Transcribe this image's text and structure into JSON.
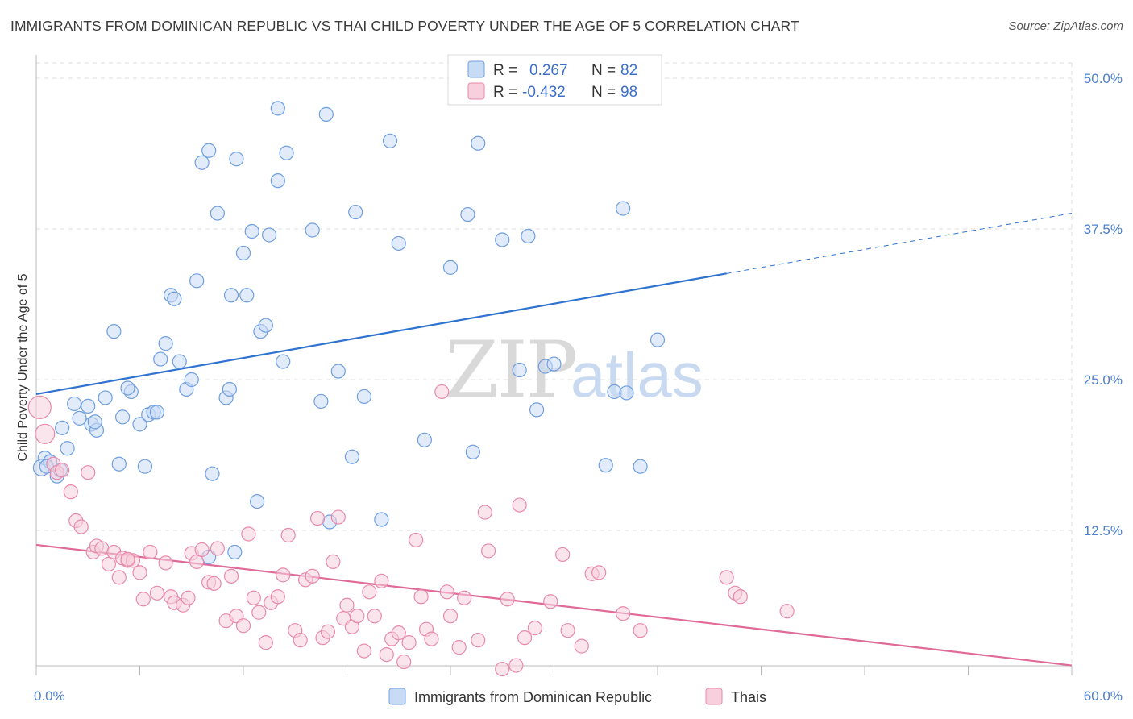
{
  "title": "IMMIGRANTS FROM DOMINICAN REPUBLIC VS THAI CHILD POVERTY UNDER THE AGE OF 5 CORRELATION CHART",
  "source": "Source: ZipAtlas.com",
  "watermark": {
    "zip": "ZIP",
    "atlas": "atlas"
  },
  "colors": {
    "blue": "#6f9fe0",
    "blue_fill": "#c8dbf5",
    "blue_line": "#2f72d0",
    "pink": "#e88aab",
    "pink_fill": "#f8cfdd",
    "pink_line": "#e06a98",
    "grid": "#dcdcdc",
    "tick_text": "#4a7fd0"
  },
  "legend": {
    "rows": [
      {
        "r_label": "R =",
        "r_value": "0.267",
        "n_label": "N =",
        "n_value": "82"
      },
      {
        "r_label": "R =",
        "r_value": "-0.432",
        "n_label": "N =",
        "n_value": "98"
      }
    ]
  },
  "bottom_legend": [
    "Immigrants from Dominican Republic",
    "Thais"
  ],
  "chart_data": {
    "type": "scatter",
    "xlabel": "",
    "ylabel": "Child Poverty Under the Age of 5",
    "xlim": [
      0,
      60
    ],
    "ylim": [
      0,
      50
    ],
    "x_tick_labels": [
      "0.0%",
      "60.0%"
    ],
    "y_ticks": [
      12.5,
      25.0,
      37.5,
      50.0
    ],
    "y_tick_labels": [
      "12.5%",
      "25.0%",
      "37.5%",
      "50.0%"
    ],
    "grid": true,
    "legend_position": "top-center",
    "series": [
      {
        "name": "Immigrants from Dominican Republic",
        "color": "blue",
        "trend": {
          "x0": 0,
          "y0": 23.8,
          "x1": 40,
          "y1": 33.8,
          "dash_to_x": 60,
          "dash_to_y": 38.8
        },
        "points": [
          [
            0.3,
            17.7
          ],
          [
            0.5,
            18.5
          ],
          [
            0.8,
            18.2
          ],
          [
            1.2,
            17.0
          ],
          [
            1.4,
            17.5
          ],
          [
            1.8,
            19.3
          ],
          [
            1.5,
            21.0
          ],
          [
            2.2,
            23.0
          ],
          [
            2.5,
            21.8
          ],
          [
            3.0,
            22.8
          ],
          [
            3.2,
            21.3
          ],
          [
            3.5,
            20.8
          ],
          [
            3.4,
            21.5
          ],
          [
            4.0,
            23.5
          ],
          [
            4.5,
            29.0
          ],
          [
            4.8,
            18.0
          ],
          [
            5.0,
            21.9
          ],
          [
            5.5,
            24.0
          ],
          [
            5.3,
            24.3
          ],
          [
            6.0,
            21.3
          ],
          [
            6.3,
            17.8
          ],
          [
            6.5,
            22.1
          ],
          [
            6.8,
            22.3
          ],
          [
            7.0,
            22.3
          ],
          [
            7.2,
            26.7
          ],
          [
            7.5,
            28.0
          ],
          [
            7.8,
            32.0
          ],
          [
            8.0,
            31.7
          ],
          [
            8.3,
            26.5
          ],
          [
            8.7,
            24.2
          ],
          [
            9.0,
            25.0
          ],
          [
            9.3,
            33.2
          ],
          [
            9.6,
            43.0
          ],
          [
            10.0,
            10.3
          ],
          [
            10.0,
            44.0
          ],
          [
            10.2,
            17.2
          ],
          [
            10.5,
            38.8
          ],
          [
            11.0,
            23.5
          ],
          [
            11.2,
            24.2
          ],
          [
            11.3,
            32.0
          ],
          [
            11.5,
            10.7
          ],
          [
            11.6,
            43.3
          ],
          [
            12.0,
            35.5
          ],
          [
            12.2,
            32.0
          ],
          [
            12.5,
            37.3
          ],
          [
            12.8,
            14.9
          ],
          [
            13.0,
            29.0
          ],
          [
            13.3,
            29.5
          ],
          [
            13.5,
            37.0
          ],
          [
            14.0,
            41.5
          ],
          [
            14.3,
            26.5
          ],
          [
            14.5,
            43.8
          ],
          [
            14.0,
            47.5
          ],
          [
            16.0,
            37.4
          ],
          [
            16.5,
            23.2
          ],
          [
            16.8,
            47.0
          ],
          [
            17.0,
            13.2
          ],
          [
            17.5,
            25.7
          ],
          [
            18.5,
            38.9
          ],
          [
            18.3,
            18.6
          ],
          [
            19.0,
            23.6
          ],
          [
            20.0,
            13.4
          ],
          [
            20.5,
            44.8
          ],
          [
            21.0,
            36.3
          ],
          [
            22.5,
            20.0
          ],
          [
            24.0,
            34.3
          ],
          [
            25.0,
            38.7
          ],
          [
            25.3,
            19.0
          ],
          [
            25.6,
            44.6
          ],
          [
            27.0,
            36.6
          ],
          [
            28.0,
            25.8
          ],
          [
            28.5,
            36.9
          ],
          [
            29.0,
            22.5
          ],
          [
            29.5,
            26.1
          ],
          [
            30.0,
            26.3
          ],
          [
            33.0,
            17.9
          ],
          [
            33.5,
            24.0
          ],
          [
            34.0,
            39.2
          ],
          [
            35.0,
            17.8
          ],
          [
            36.0,
            28.3
          ],
          [
            34.2,
            23.9
          ],
          [
            0.6,
            17.8
          ]
        ]
      },
      {
        "name": "Thais",
        "color": "pink",
        "trend": {
          "x0": 0,
          "y0": 11.3,
          "x1": 60,
          "y1": 1.3
        },
        "points": [
          [
            0.2,
            22.7
          ],
          [
            0.5,
            20.5
          ],
          [
            1.0,
            18.0
          ],
          [
            1.2,
            17.3
          ],
          [
            1.5,
            17.5
          ],
          [
            2.0,
            15.7
          ],
          [
            2.3,
            13.3
          ],
          [
            2.6,
            12.8
          ],
          [
            3.0,
            17.3
          ],
          [
            3.3,
            10.7
          ],
          [
            3.5,
            11.2
          ],
          [
            3.8,
            11.0
          ],
          [
            4.2,
            9.7
          ],
          [
            4.5,
            10.7
          ],
          [
            4.8,
            8.6
          ],
          [
            5.0,
            10.2
          ],
          [
            5.3,
            10.0
          ],
          [
            5.6,
            10.0
          ],
          [
            6.0,
            9.0
          ],
          [
            6.2,
            6.8
          ],
          [
            6.6,
            10.7
          ],
          [
            7.0,
            7.3
          ],
          [
            7.5,
            9.8
          ],
          [
            7.8,
            7.0
          ],
          [
            8.0,
            6.5
          ],
          [
            8.5,
            6.3
          ],
          [
            9.0,
            10.6
          ],
          [
            9.3,
            9.9
          ],
          [
            9.6,
            10.9
          ],
          [
            10.0,
            8.2
          ],
          [
            10.3,
            8.1
          ],
          [
            10.5,
            11.0
          ],
          [
            11.0,
            5.0
          ],
          [
            11.3,
            8.7
          ],
          [
            11.6,
            5.4
          ],
          [
            12.0,
            4.6
          ],
          [
            12.3,
            12.2
          ],
          [
            12.6,
            6.9
          ],
          [
            12.9,
            5.7
          ],
          [
            13.3,
            3.2
          ],
          [
            13.6,
            6.5
          ],
          [
            14.0,
            7.0
          ],
          [
            14.3,
            8.8
          ],
          [
            14.6,
            12.1
          ],
          [
            15.0,
            4.2
          ],
          [
            15.3,
            3.4
          ],
          [
            15.6,
            8.4
          ],
          [
            16.0,
            8.7
          ],
          [
            16.3,
            13.5
          ],
          [
            16.6,
            3.6
          ],
          [
            16.9,
            4.1
          ],
          [
            17.2,
            9.9
          ],
          [
            17.5,
            13.6
          ],
          [
            17.8,
            5.2
          ],
          [
            18.0,
            6.3
          ],
          [
            18.3,
            4.5
          ],
          [
            18.6,
            5.4
          ],
          [
            19.0,
            2.5
          ],
          [
            19.3,
            7.4
          ],
          [
            19.6,
            5.4
          ],
          [
            20.0,
            8.3
          ],
          [
            20.3,
            2.2
          ],
          [
            20.6,
            3.5
          ],
          [
            21.0,
            4.0
          ],
          [
            21.3,
            1.6
          ],
          [
            21.6,
            3.2
          ],
          [
            22.0,
            11.7
          ],
          [
            22.3,
            7.0
          ],
          [
            22.6,
            4.3
          ],
          [
            22.9,
            3.5
          ],
          [
            23.5,
            24.0
          ],
          [
            23.8,
            7.4
          ],
          [
            24.0,
            5.4
          ],
          [
            24.5,
            2.8
          ],
          [
            24.8,
            6.9
          ],
          [
            25.6,
            3.4
          ],
          [
            26.0,
            14.0
          ],
          [
            26.2,
            10.8
          ],
          [
            27.0,
            1.0
          ],
          [
            27.3,
            6.8
          ],
          [
            27.8,
            1.3
          ],
          [
            28.0,
            14.6
          ],
          [
            28.3,
            3.6
          ],
          [
            28.9,
            4.4
          ],
          [
            29.8,
            6.6
          ],
          [
            30.5,
            10.5
          ],
          [
            30.8,
            4.2
          ],
          [
            31.6,
            2.9
          ],
          [
            32.2,
            8.9
          ],
          [
            32.6,
            9.0
          ],
          [
            34.0,
            5.6
          ],
          [
            35.0,
            4.2
          ],
          [
            40.0,
            8.6
          ],
          [
            40.5,
            7.3
          ],
          [
            40.8,
            7.0
          ],
          [
            43.5,
            5.8
          ],
          [
            5.3,
            10.1
          ],
          [
            8.8,
            6.9
          ]
        ]
      }
    ]
  }
}
